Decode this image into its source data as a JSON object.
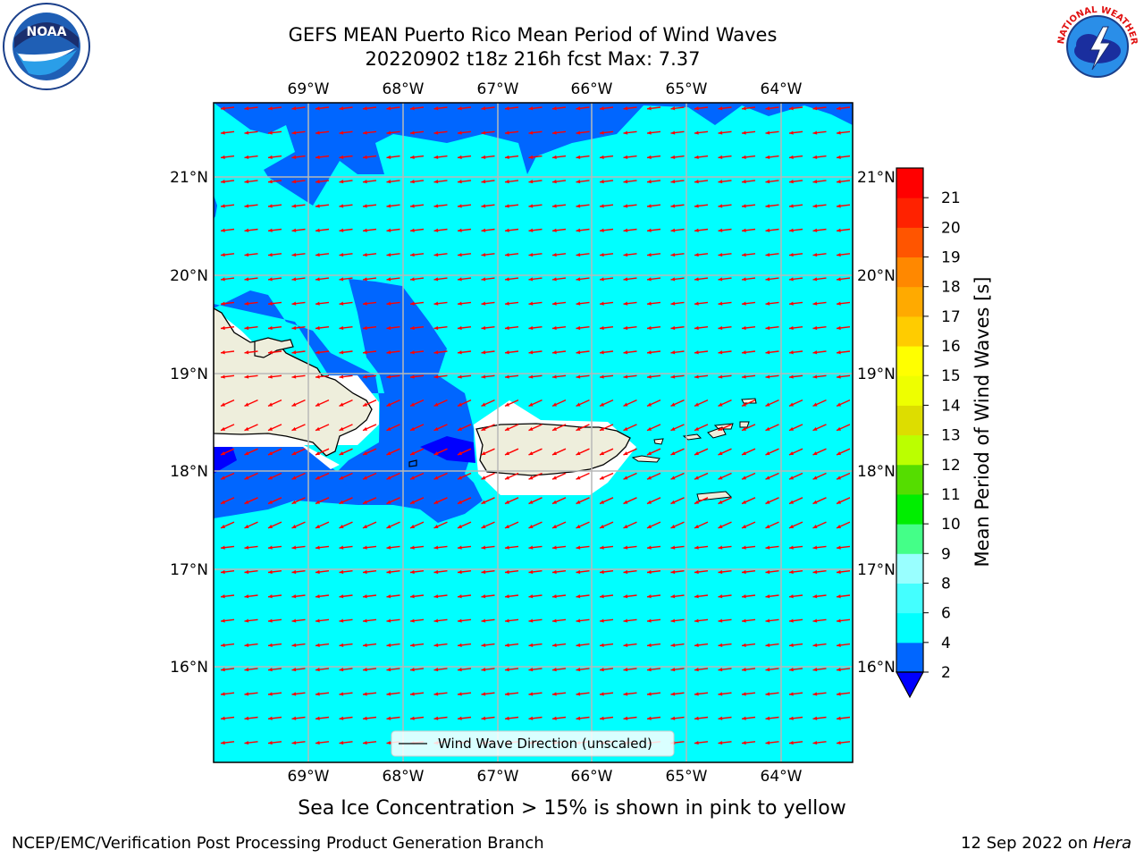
{
  "title": {
    "line1": "GEFS MEAN Puerto Rico Mean Period of Wind Waves",
    "line2": "20220902 t18z 216h fcst   Max: 7.37"
  },
  "map": {
    "lon_labels": [
      "69°W",
      "68°W",
      "67°W",
      "66°W",
      "65°W",
      "64°W"
    ],
    "lat_labels": [
      "21°N",
      "20°N",
      "19°N",
      "18°N",
      "17°N",
      "16°N"
    ],
    "legend_label": "Wind Wave Direction (unscaled)",
    "vector_color": "#ff0000"
  },
  "colorbar": {
    "label": "Mean Period of Wind Waves [s]",
    "ticks": [
      "2",
      "4",
      "6",
      "8",
      "9",
      "10",
      "11",
      "12",
      "13",
      "14",
      "15",
      "16",
      "17",
      "18",
      "19",
      "20",
      "21"
    ],
    "colors": [
      "#0066ff",
      "#00ffff",
      "#44ffff",
      "#99ffff",
      "#44ff88",
      "#00ee00",
      "#55dd00",
      "#bbff00",
      "#dddd00",
      "#eeff00",
      "#ffff00",
      "#ffcc00",
      "#ffaa00",
      "#ff8800",
      "#ff5500",
      "#ff2200",
      "#ff0000"
    ],
    "under_color": "#0000ff"
  },
  "colors": {
    "ocean_main": "#00ffff",
    "ocean_deep": "#0066ff",
    "ocean_darkest": "#0000ff",
    "land": "#eeeedc",
    "grid": "#b8b8b8"
  },
  "footer": {
    "ice_note": "Sea Ice Concentration > 15% is shown in pink to yellow",
    "credit": "NCEP/EMC/Verification Post Processing Product Generation Branch",
    "date": "12 Sep 2022 on ",
    "host": "Hera"
  },
  "logos": {
    "noaa_text": "NOAA",
    "nws_text": "NATIONAL WEATHER SERVICE"
  }
}
